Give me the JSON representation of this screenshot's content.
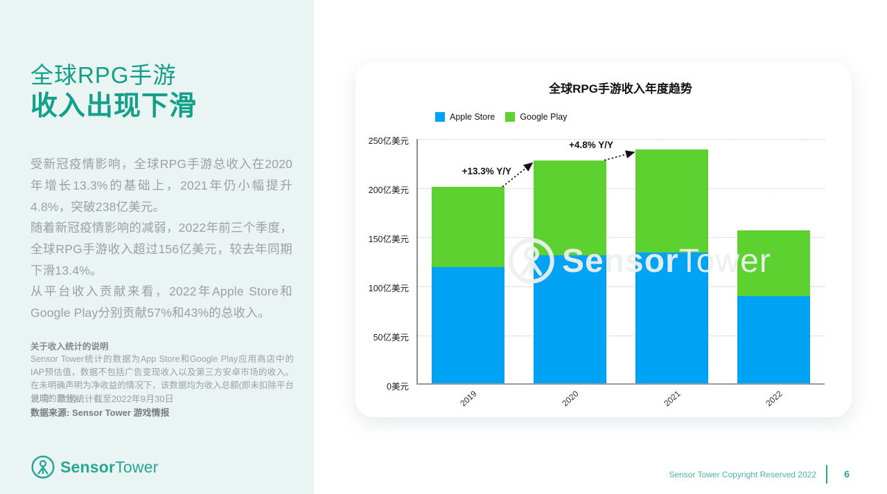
{
  "sidebar": {
    "title_line1": "全球RPG手游",
    "title_line2": "收入出现下滑",
    "paragraphs": [
      "受新冠疫情影响，全球RPG手游总收入在2020年增长13.3%的基础上，2021年仍小幅提升4.8%，突破238亿美元。",
      "随着新冠疫情影响的减弱，2022年前三个季度，全球RPG手游收入超过156亿美元，较去年同期下滑13.4%。",
      "从平台收入贡献来看，2022年Apple Store和Google Play分别贡献57%和43%的总收入。"
    ],
    "note_title": "关于收入统计的说明",
    "note_body": "Sensor Tower统计的数据为App Store和Google Play应用商店中的IAP预估值，数据不包括广告变现收入以及第三方安卓市场的收入。在未明确声明为净收益的情况下，该数据均为收入总额(即未扣除平台分成的部分)。",
    "caption_line1": "说明：数据统计截至2022年9月30日",
    "caption_line2": "数据来源: Sensor Tower 游戏情报",
    "logo": {
      "bold": "Sensor",
      "light": "Tower"
    }
  },
  "footer": {
    "copyright": "Sensor Tower Copyright Reserved 2022",
    "page_number": "6"
  },
  "colors": {
    "sidebar_bg": "#eaf4f2",
    "brand_teal": "#12a08b",
    "apple_blue": "#00a2f4",
    "google_green": "#5dd12f"
  },
  "chart_data": {
    "type": "bar",
    "stacked": true,
    "title": "全球RPG手游收入年度趋势",
    "categories": [
      "2019",
      "2020",
      "2021",
      "2022"
    ],
    "series": [
      {
        "name": "Apple Store",
        "color": "#00a2f4",
        "values": [
          118,
          130,
          133,
          89
        ]
      },
      {
        "name": "Google Play",
        "color": "#5dd12f",
        "values": [
          82,
          97,
          105,
          67
        ]
      }
    ],
    "totals": [
      200,
      227,
      238,
      156
    ],
    "annotations": [
      {
        "label": "+13.3% Y/Y",
        "from": 0,
        "to": 1
      },
      {
        "label": "+4.8% Y/Y",
        "from": 1,
        "to": 2
      }
    ],
    "y_axis": {
      "unit": "亿美元",
      "ylim": [
        0,
        250
      ],
      "tick_values": [
        250,
        200,
        150,
        100,
        50,
        0
      ],
      "tick_labels": [
        "250亿美元",
        "200亿美元",
        "150亿美元",
        "100亿美元",
        "50亿美元",
        "0美元"
      ]
    },
    "legend_position": "top-left",
    "grid": "horizontal-dotted",
    "watermark": {
      "bold": "Sensor",
      "light": "Tower"
    }
  }
}
